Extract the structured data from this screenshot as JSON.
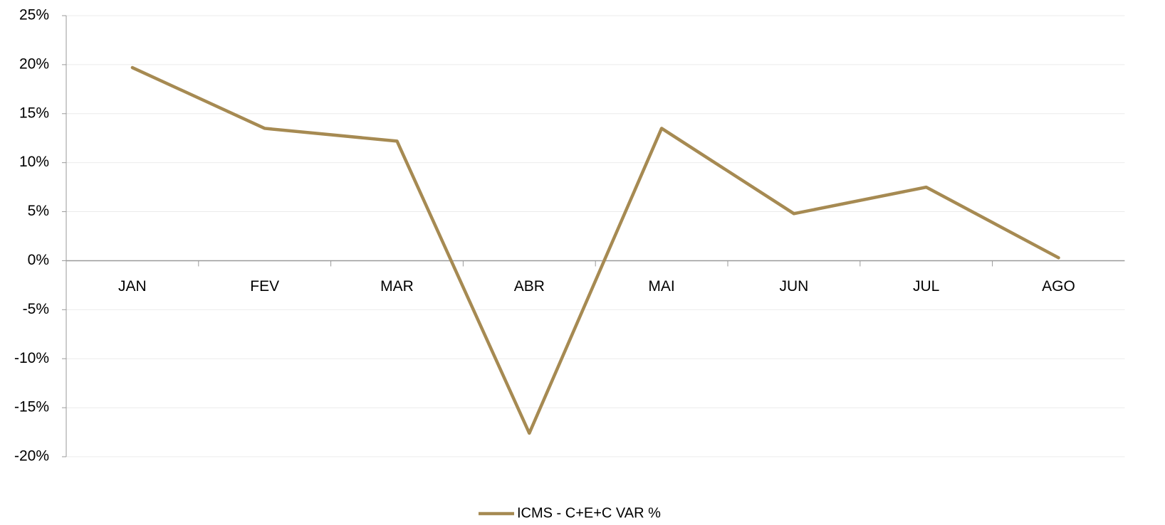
{
  "chart_data": {
    "type": "line",
    "categories": [
      "JAN",
      "FEV",
      "MAR",
      "ABR",
      "MAI",
      "JUN",
      "JUL",
      "AGO"
    ],
    "series": [
      {
        "name": "ICMS - C+E+C VAR %",
        "color": "#a68a52",
        "values": [
          19.7,
          13.5,
          12.2,
          -17.6,
          13.5,
          4.8,
          7.5,
          0.3
        ]
      }
    ],
    "ylim": [
      -20,
      25
    ],
    "yticks": [
      {
        "value": -20,
        "label": "-20%"
      },
      {
        "value": -15,
        "label": "-15%"
      },
      {
        "value": -10,
        "label": "-10%"
      },
      {
        "value": -5,
        "label": "-5%"
      },
      {
        "value": 0,
        "label": "0%"
      },
      {
        "value": 5,
        "label": "5%"
      },
      {
        "value": 10,
        "label": "10%"
      },
      {
        "value": 15,
        "label": "15%"
      },
      {
        "value": 20,
        "label": "20%"
      },
      {
        "value": 25,
        "label": "25%"
      }
    ],
    "grid": true,
    "legend": "bottom"
  }
}
